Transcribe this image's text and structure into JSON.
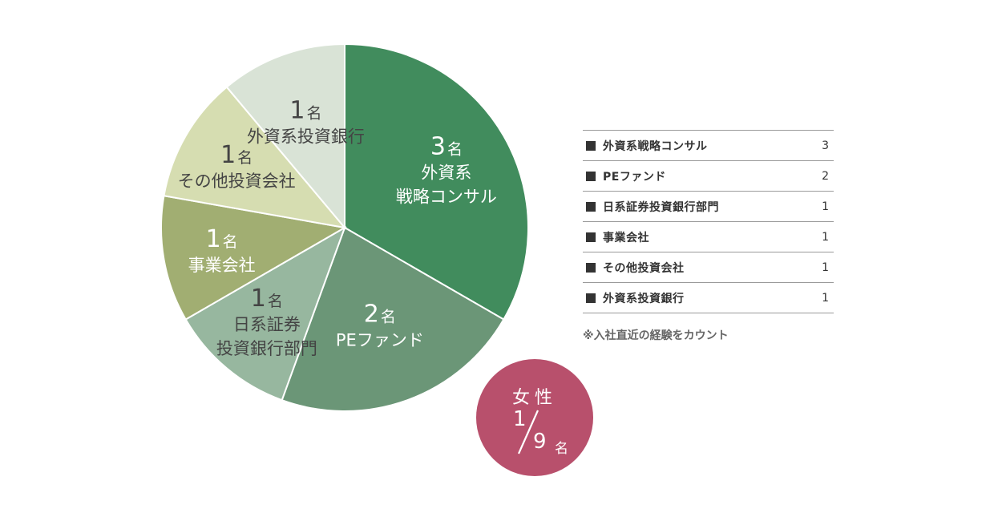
{
  "chart_data": {
    "type": "pie",
    "slices": [
      {
        "name": "外資系戦略コンサル",
        "value": 3,
        "count_label": "3名",
        "label_lines": [
          "外資系",
          "戦略コンサル"
        ],
        "color": "#418c5d",
        "text_color": "#ffffff"
      },
      {
        "name": "PEファンド",
        "value": 2,
        "count_label": "2名",
        "label_lines": [
          "PEファンド"
        ],
        "color": "#6b9677",
        "text_color": "#ffffff"
      },
      {
        "name": "日系証券投資銀行部門",
        "value": 1,
        "count_label": "1名",
        "label_lines": [
          "日系証券",
          "投資銀行部門"
        ],
        "color": "#97b79f",
        "text_color": "#444444"
      },
      {
        "name": "事業会社",
        "value": 1,
        "count_label": "1名",
        "label_lines": [
          "事業会社"
        ],
        "color": "#a1ae72",
        "text_color": "#ffffff"
      },
      {
        "name": "その他投資会社",
        "value": 1,
        "count_label": "1名",
        "label_lines": [
          "その他投資会社"
        ],
        "color": "#d6ddb1",
        "text_color": "#444444"
      },
      {
        "name": "外資系投資銀行",
        "value": 1,
        "count_label": "1名",
        "label_lines": [
          "外資系投資銀行"
        ],
        "color": "#d9e3d6",
        "text_color": "#444444"
      }
    ]
  },
  "legend": {
    "items": [
      {
        "name": "外資系戦略コンサル",
        "count": "3"
      },
      {
        "name": "PEファンド",
        "count": "2"
      },
      {
        "name": "日系証券投資銀行部門",
        "count": "1"
      },
      {
        "name": "事業会社",
        "count": "1"
      },
      {
        "name": "その他投資会社",
        "count": "1"
      },
      {
        "name": "外資系投資銀行",
        "count": "1"
      }
    ],
    "note": "※入社直近の経験をカウント"
  },
  "female": {
    "title": "女性",
    "numerator": "1",
    "denominator": "9",
    "unit": "名",
    "color": "#b8506c"
  }
}
